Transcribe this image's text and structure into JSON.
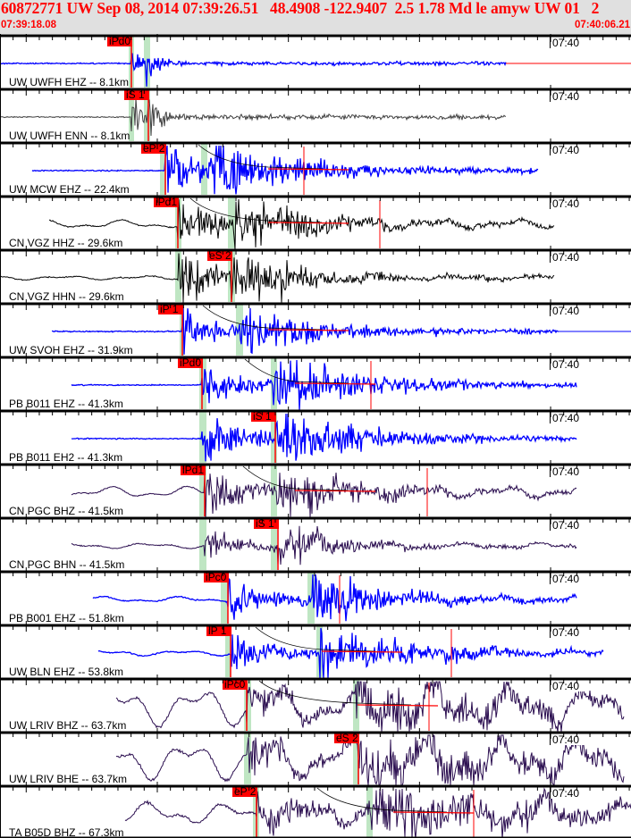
{
  "header": {
    "title": "60872771 UW Sep 08, 2014 07:39:26.51   48.4908 -122.9407  2.5 1.78 Md le amyw UW 01   2",
    "start_time": "07:39:18.08",
    "end_time": "07:40:06.21",
    "title_color": "#ff0000"
  },
  "minute_label": "07:40",
  "colors": {
    "pick": "#ff0000",
    "pick_window": "#bfe6c3",
    "blue": "#0000ff",
    "gray": "#404040",
    "black": "#000000",
    "purple": "#2a0d4f"
  },
  "channels": [
    {
      "label": "UW UWFH EHZ -- 8.1km",
      "pick": "iPd0",
      "trace_color": "blue"
    },
    {
      "label": "UW UWFH ENN -- 8.1km",
      "pick": "iS 1",
      "trace_color": "gray"
    },
    {
      "label": "UW MCW EHZ -- 22.4km",
      "pick": "eP 2",
      "trace_color": "blue"
    },
    {
      "label": "CN VGZ HHZ -- 29.6km",
      "pick": "iPd1",
      "trace_color": "black"
    },
    {
      "label": "CN VGZ HHN -- 29.6km",
      "pick": "eS 2",
      "trace_color": "black"
    },
    {
      "label": "UW SVOH EHZ -- 31.9km",
      "pick": "iP 1",
      "trace_color": "blue"
    },
    {
      "label": "PB B011 EHZ -- 41.3km",
      "pick": "iPd0",
      "trace_color": "blue"
    },
    {
      "label": "PB B011 EH2 -- 41.3km",
      "pick": "iS 1",
      "trace_color": "blue"
    },
    {
      "label": "CN PGC BHZ -- 41.5km",
      "pick": "iPd1",
      "trace_color": "purple"
    },
    {
      "label": "CN PGC BHN -- 41.5km",
      "pick": "iS 1",
      "trace_color": "purple"
    },
    {
      "label": "PB B001 EHZ -- 51.8km",
      "pick": "iPc0",
      "trace_color": "blue"
    },
    {
      "label": "UW BLN EHZ -- 53.8km",
      "pick": "iP 1",
      "trace_color": "blue"
    },
    {
      "label": "UW LRIV BHZ -- 63.7km",
      "pick": "iPc0",
      "trace_color": "purple"
    },
    {
      "label": "UW LRIV BHE -- 63.7km",
      "pick": "eS 2",
      "trace_color": "purple"
    },
    {
      "label": "TA B05D BHZ -- 67.3km",
      "pick": "eP 2",
      "trace_color": "purple"
    }
  ]
}
